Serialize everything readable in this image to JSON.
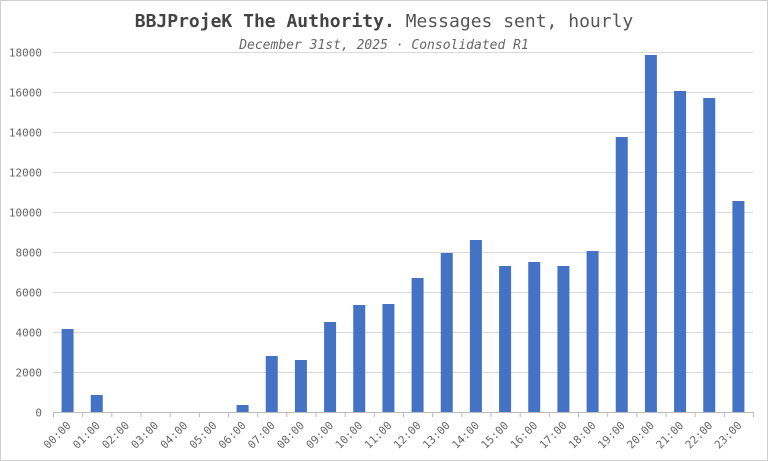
{
  "chart_data": {
    "type": "bar",
    "title_bold": "BBJProjeK The Authority.",
    "title_rest": "Messages sent, hourly",
    "subtitle": "December 31st, 2025 · Consolidated R1",
    "xlabel": "",
    "ylabel": "",
    "ylim": [
      0,
      18000
    ],
    "yticks": [
      0,
      2000,
      4000,
      6000,
      8000,
      10000,
      12000,
      14000,
      16000,
      18000
    ],
    "grid": true,
    "bar_color": "#4472c4",
    "categories": [
      "00:00",
      "01:00",
      "02:00",
      "03:00",
      "04:00",
      "05:00",
      "06:00",
      "07:00",
      "08:00",
      "09:00",
      "10:00",
      "11:00",
      "12:00",
      "13:00",
      "14:00",
      "15:00",
      "16:00",
      "17:00",
      "18:00",
      "19:00",
      "20:00",
      "21:00",
      "22:00",
      "23:00"
    ],
    "values": [
      4150,
      850,
      0,
      0,
      0,
      0,
      350,
      2800,
      2600,
      4500,
      5350,
      5400,
      6700,
      7950,
      8600,
      7300,
      7500,
      7300,
      8050,
      13750,
      17850,
      16050,
      15700,
      10550
    ]
  }
}
